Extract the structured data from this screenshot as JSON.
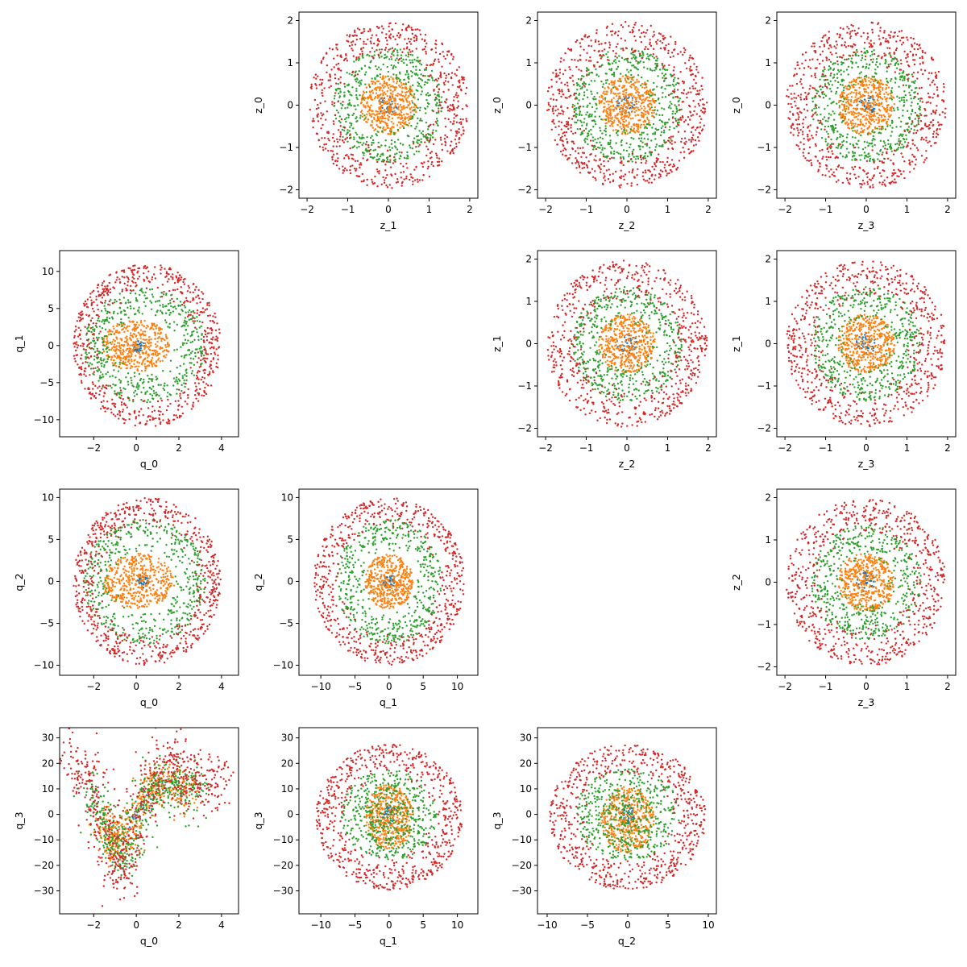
{
  "colors": {
    "series_0": "#1f77b4",
    "series_1": "#ff7f0e",
    "series_2": "#2ca02c",
    "series_3": "#d62728"
  },
  "chart_data": [
    {
      "type": "scatter",
      "row": 0,
      "col": 1,
      "xlabel": "z_1",
      "ylabel": "z_0",
      "xlim": [
        -2.2,
        2.2
      ],
      "ylim": [
        -2.2,
        2.2
      ],
      "xticks": [
        -2,
        -1,
        0,
        1,
        2
      ],
      "yticks": [
        -2,
        -1,
        0,
        1,
        2
      ],
      "grid": false,
      "series": [
        {
          "color": "#1f77b4",
          "shape": "disk",
          "rx": 0.25,
          "ry": 0.25,
          "cx": 0,
          "cy": 0,
          "n": 40
        },
        {
          "color": "#ff7f0e",
          "shape": "disk",
          "rx": 0.7,
          "ry": 0.7,
          "cx": 0,
          "cy": 0,
          "n": 450
        },
        {
          "color": "#2ca02c",
          "shape": "ring",
          "r0": 0.5,
          "r1": 1.35,
          "cx": 0,
          "cy": 0,
          "n": 500
        },
        {
          "color": "#d62728",
          "shape": "ring",
          "r0": 1.0,
          "r1": 1.97,
          "cx": 0,
          "cy": 0,
          "n": 650
        }
      ]
    },
    {
      "type": "scatter",
      "row": 0,
      "col": 2,
      "xlabel": "z_2",
      "ylabel": "z_0",
      "xlim": [
        -2.2,
        2.2
      ],
      "ylim": [
        -2.2,
        2.2
      ],
      "xticks": [
        -2,
        -1,
        0,
        1,
        2
      ],
      "yticks": [
        -2,
        -1,
        0,
        1,
        2
      ],
      "grid": false,
      "series": [
        {
          "color": "#1f77b4",
          "shape": "disk",
          "rx": 0.25,
          "ry": 0.25,
          "cx": 0,
          "cy": 0,
          "n": 40
        },
        {
          "color": "#ff7f0e",
          "shape": "disk",
          "rx": 0.7,
          "ry": 0.7,
          "cx": 0,
          "cy": 0,
          "n": 450
        },
        {
          "color": "#2ca02c",
          "shape": "ring",
          "r0": 0.5,
          "r1": 1.35,
          "cx": 0,
          "cy": 0,
          "n": 500
        },
        {
          "color": "#d62728",
          "shape": "ring",
          "r0": 1.0,
          "r1": 1.97,
          "cx": 0,
          "cy": 0,
          "n": 650
        }
      ]
    },
    {
      "type": "scatter",
      "row": 0,
      "col": 3,
      "xlabel": "z_3",
      "ylabel": "z_0",
      "xlim": [
        -2.2,
        2.2
      ],
      "ylim": [
        -2.2,
        2.2
      ],
      "xticks": [
        -2,
        -1,
        0,
        1,
        2
      ],
      "yticks": [
        -2,
        -1,
        0,
        1,
        2
      ],
      "grid": false,
      "series": [
        {
          "color": "#1f77b4",
          "shape": "disk",
          "rx": 0.25,
          "ry": 0.25,
          "cx": 0,
          "cy": 0,
          "n": 40
        },
        {
          "color": "#ff7f0e",
          "shape": "disk",
          "rx": 0.7,
          "ry": 0.7,
          "cx": 0,
          "cy": 0,
          "n": 450
        },
        {
          "color": "#2ca02c",
          "shape": "ring",
          "r0": 0.5,
          "r1": 1.35,
          "cx": 0,
          "cy": 0,
          "n": 500
        },
        {
          "color": "#d62728",
          "shape": "ring",
          "r0": 1.0,
          "r1": 1.97,
          "cx": 0,
          "cy": 0,
          "n": 650
        }
      ]
    },
    {
      "type": "scatter",
      "row": 1,
      "col": 0,
      "xlabel": "q_0",
      "ylabel": "q_1",
      "xlim": [
        -3.6,
        4.8
      ],
      "ylim": [
        -12.3,
        12.8
      ],
      "xticks": [
        -2,
        0,
        2,
        4
      ],
      "yticks": [
        -10,
        -5,
        0,
        5,
        10
      ],
      "grid": false,
      "series": [
        {
          "color": "#1f77b4",
          "shape": "disk",
          "rx": 0.3,
          "ry": 1.0,
          "cx": 0.1,
          "cy": 0,
          "n": 40
        },
        {
          "color": "#ff7f0e",
          "shape": "disk",
          "rx": 1.6,
          "ry": 3.5,
          "cx": 0,
          "cy": 0,
          "n": 450
        },
        {
          "color": "#2ca02c",
          "shape": "ring",
          "r0": 0.5,
          "r1": 1.1,
          "sx": 2.6,
          "sy": 7,
          "cx": 0.4,
          "cy": 0,
          "n": 500
        },
        {
          "color": "#d62728",
          "shape": "ring",
          "r0": 0.65,
          "r1": 1.05,
          "sx": 3.3,
          "sy": 10.5,
          "cx": 0.5,
          "cy": 0,
          "n": 650
        }
      ]
    },
    {
      "type": "scatter",
      "row": 1,
      "col": 2,
      "xlabel": "z_2",
      "ylabel": "z_1",
      "xlim": [
        -2.2,
        2.2
      ],
      "ylim": [
        -2.2,
        2.2
      ],
      "xticks": [
        -2,
        -1,
        0,
        1,
        2
      ],
      "yticks": [
        -2,
        -1,
        0,
        1,
        2
      ],
      "grid": false,
      "series": [
        {
          "color": "#1f77b4",
          "shape": "disk",
          "rx": 0.25,
          "ry": 0.25,
          "cx": 0,
          "cy": 0,
          "n": 40
        },
        {
          "color": "#ff7f0e",
          "shape": "disk",
          "rx": 0.7,
          "ry": 0.7,
          "cx": 0,
          "cy": 0,
          "n": 450
        },
        {
          "color": "#2ca02c",
          "shape": "ring",
          "r0": 0.5,
          "r1": 1.35,
          "cx": 0,
          "cy": 0,
          "n": 500
        },
        {
          "color": "#d62728",
          "shape": "ring",
          "r0": 1.0,
          "r1": 1.97,
          "cx": 0,
          "cy": 0,
          "n": 650
        }
      ]
    },
    {
      "type": "scatter",
      "row": 1,
      "col": 3,
      "xlabel": "z_3",
      "ylabel": "z_1",
      "xlim": [
        -2.2,
        2.2
      ],
      "ylim": [
        -2.2,
        2.2
      ],
      "xticks": [
        -2,
        -1,
        0,
        1,
        2
      ],
      "yticks": [
        -2,
        -1,
        0,
        1,
        2
      ],
      "grid": false,
      "series": [
        {
          "color": "#1f77b4",
          "shape": "disk",
          "rx": 0.25,
          "ry": 0.25,
          "cx": 0,
          "cy": 0,
          "n": 40
        },
        {
          "color": "#ff7f0e",
          "shape": "disk",
          "rx": 0.7,
          "ry": 0.7,
          "cx": 0,
          "cy": 0,
          "n": 450
        },
        {
          "color": "#2ca02c",
          "shape": "ring",
          "r0": 0.5,
          "r1": 1.35,
          "cx": 0,
          "cy": 0,
          "n": 500
        },
        {
          "color": "#d62728",
          "shape": "ring",
          "r0": 1.0,
          "r1": 1.97,
          "cx": 0,
          "cy": 0,
          "n": 650
        }
      ]
    },
    {
      "type": "scatter",
      "row": 2,
      "col": 0,
      "xlabel": "q_0",
      "ylabel": "q_2",
      "xlim": [
        -3.6,
        4.8
      ],
      "ylim": [
        -11.2,
        11.0
      ],
      "xticks": [
        -2,
        0,
        2,
        4
      ],
      "yticks": [
        -10,
        -5,
        0,
        5,
        10
      ],
      "grid": false,
      "series": [
        {
          "color": "#1f77b4",
          "shape": "disk",
          "rx": 0.3,
          "ry": 0.8,
          "cx": 0.3,
          "cy": 0,
          "n": 40
        },
        {
          "color": "#ff7f0e",
          "shape": "disk",
          "rx": 1.7,
          "ry": 3.3,
          "cx": 0.1,
          "cy": 0,
          "n": 450
        },
        {
          "color": "#2ca02c",
          "shape": "ring",
          "r0": 0.5,
          "r1": 1.1,
          "sx": 2.6,
          "sy": 6.8,
          "cx": 0.4,
          "cy": 0,
          "n": 500
        },
        {
          "color": "#d62728",
          "shape": "ring",
          "r0": 0.65,
          "r1": 1.05,
          "sx": 3.3,
          "sy": 9.5,
          "cx": 0.5,
          "cy": 0,
          "n": 650
        }
      ]
    },
    {
      "type": "scatter",
      "row": 2,
      "col": 1,
      "xlabel": "q_1",
      "ylabel": "q_2",
      "xlim": [
        -13.2,
        13.0
      ],
      "ylim": [
        -11.2,
        11.0
      ],
      "xticks": [
        -10,
        -5,
        0,
        5,
        10
      ],
      "yticks": [
        -10,
        -5,
        0,
        5,
        10
      ],
      "grid": false,
      "series": [
        {
          "color": "#1f77b4",
          "shape": "disk",
          "rx": 1.0,
          "ry": 0.8,
          "cx": 0,
          "cy": 0,
          "n": 40
        },
        {
          "color": "#ff7f0e",
          "shape": "disk",
          "rx": 3.5,
          "ry": 3.3,
          "cx": 0,
          "cy": 0,
          "n": 450
        },
        {
          "color": "#2ca02c",
          "shape": "ring",
          "r0": 0.5,
          "r1": 1.1,
          "sx": 7,
          "sy": 6.8,
          "cx": 0,
          "cy": 0,
          "n": 500
        },
        {
          "color": "#d62728",
          "shape": "ring",
          "r0": 0.65,
          "r1": 1.05,
          "sx": 10.5,
          "sy": 9.5,
          "cx": 0,
          "cy": 0,
          "n": 650
        }
      ]
    },
    {
      "type": "scatter",
      "row": 2,
      "col": 3,
      "xlabel": "z_3",
      "ylabel": "z_2",
      "xlim": [
        -2.2,
        2.2
      ],
      "ylim": [
        -2.2,
        2.2
      ],
      "xticks": [
        -2,
        -1,
        0,
        1,
        2
      ],
      "yticks": [
        -2,
        -1,
        0,
        1,
        2
      ],
      "grid": false,
      "series": [
        {
          "color": "#1f77b4",
          "shape": "disk",
          "rx": 0.25,
          "ry": 0.25,
          "cx": 0,
          "cy": 0,
          "n": 40
        },
        {
          "color": "#ff7f0e",
          "shape": "disk",
          "rx": 0.7,
          "ry": 0.7,
          "cx": 0,
          "cy": 0,
          "n": 450
        },
        {
          "color": "#2ca02c",
          "shape": "ring",
          "r0": 0.5,
          "r1": 1.35,
          "cx": 0,
          "cy": 0,
          "n": 500
        },
        {
          "color": "#d62728",
          "shape": "ring",
          "r0": 1.0,
          "r1": 1.97,
          "cx": 0,
          "cy": 0,
          "n": 650
        }
      ]
    },
    {
      "type": "scatter",
      "row": 3,
      "col": 0,
      "xlabel": "q_0",
      "ylabel": "q_3",
      "xlim": [
        -3.6,
        4.8
      ],
      "ylim": [
        -39,
        34
      ],
      "xticks": [
        -2,
        0,
        2,
        4
      ],
      "yticks": [
        -30,
        -20,
        -10,
        0,
        10,
        20,
        30
      ],
      "grid": false,
      "series": [
        {
          "color": "#1f77b4",
          "shape": "curve",
          "curve": [
            [
              -1.0,
              -14
            ],
            [
              -0.5,
              -9
            ],
            [
              0,
              -1
            ],
            [
              0.5,
              6
            ],
            [
              1.0,
              11
            ],
            [
              1.5,
              10
            ]
          ],
          "sx": 0.1,
          "sy": 2,
          "n": 40
        },
        {
          "color": "#ff7f0e",
          "shape": "curve",
          "curve": [
            [
              -1.6,
              -3
            ],
            [
              -1.3,
              -8
            ],
            [
              -1.0,
              -12
            ],
            [
              -0.6,
              -10
            ],
            [
              -0.2,
              -4
            ],
            [
              0.2,
              4
            ],
            [
              0.6,
              9
            ],
            [
              1.0,
              11
            ],
            [
              1.5,
              12
            ],
            [
              2.0,
              10
            ],
            [
              2.5,
              8
            ]
          ],
          "sx": 0.3,
          "sy": 4,
          "n": 450
        },
        {
          "color": "#2ca02c",
          "shape": "curve",
          "curve": [
            [
              -2.2,
              12
            ],
            [
              -1.8,
              4
            ],
            [
              -1.4,
              -6
            ],
            [
              -1.0,
              -14
            ],
            [
              -0.6,
              -16
            ],
            [
              -0.2,
              -8
            ],
            [
              0.3,
              4
            ],
            [
              0.8,
              11
            ],
            [
              1.3,
              14
            ],
            [
              1.8,
              11
            ],
            [
              2.4,
              9
            ],
            [
              3.0,
              8
            ]
          ],
          "sx": 0.35,
          "sy": 5,
          "n": 500
        },
        {
          "color": "#d62728",
          "shape": "curve",
          "curve": [
            [
              -3.1,
              22
            ],
            [
              -2.6,
              20
            ],
            [
              -2.2,
              14
            ],
            [
              -1.8,
              4
            ],
            [
              -1.4,
              -8
            ],
            [
              -1.0,
              -20
            ],
            [
              -0.7,
              -25
            ],
            [
              -0.3,
              -14
            ],
            [
              0.1,
              0
            ],
            [
              0.6,
              12
            ],
            [
              1.0,
              18
            ],
            [
              1.5,
              22
            ],
            [
              2.0,
              18
            ],
            [
              2.5,
              14
            ],
            [
              3.0,
              12
            ],
            [
              3.5,
              13
            ],
            [
              4.0,
              14
            ]
          ],
          "sx": 0.4,
          "sy": 6,
          "n": 650
        }
      ]
    },
    {
      "type": "scatter",
      "row": 3,
      "col": 1,
      "xlabel": "q_1",
      "ylabel": "q_3",
      "xlim": [
        -13.2,
        13.0
      ],
      "ylim": [
        -39,
        34
      ],
      "xticks": [
        -10,
        -5,
        0,
        5,
        10
      ],
      "yticks": [
        -30,
        -20,
        -10,
        0,
        10,
        20,
        30
      ],
      "grid": false,
      "series": [
        {
          "color": "#1f77b4",
          "shape": "disk",
          "rx": 1.0,
          "ry": 4,
          "cx": 0,
          "cy": 0,
          "n": 40
        },
        {
          "color": "#ff7f0e",
          "shape": "disk",
          "rx": 3.5,
          "ry": 13,
          "cx": 0,
          "cy": -1,
          "n": 450
        },
        {
          "color": "#2ca02c",
          "shape": "disk",
          "rx": 7,
          "ry": 18,
          "cx": 0,
          "cy": 0,
          "n": 500
        },
        {
          "color": "#d62728",
          "shape": "ring",
          "r0": 0.55,
          "r1": 1.02,
          "sx": 10.5,
          "sy": 28,
          "cx": 0,
          "cy": -1,
          "n": 650
        }
      ]
    },
    {
      "type": "scatter",
      "row": 3,
      "col": 2,
      "xlabel": "q_2",
      "ylabel": "q_3",
      "xlim": [
        -11.2,
        11.0
      ],
      "ylim": [
        -39,
        34
      ],
      "xticks": [
        -10,
        -5,
        0,
        5,
        10
      ],
      "yticks": [
        -30,
        -20,
        -10,
        0,
        10,
        20,
        30
      ],
      "grid": false,
      "series": [
        {
          "color": "#1f77b4",
          "shape": "disk",
          "rx": 0.8,
          "ry": 4,
          "cx": 0,
          "cy": 0,
          "n": 40
        },
        {
          "color": "#ff7f0e",
          "shape": "disk",
          "rx": 3.3,
          "ry": 13,
          "cx": 0,
          "cy": -2,
          "n": 450
        },
        {
          "color": "#2ca02c",
          "shape": "disk",
          "rx": 6.5,
          "ry": 18,
          "cx": 0,
          "cy": 0,
          "n": 500
        },
        {
          "color": "#d62728",
          "shape": "ring",
          "r0": 0.55,
          "r1": 1.02,
          "sx": 9.5,
          "sy": 28,
          "cx": 0,
          "cy": -1,
          "n": 650
        }
      ]
    }
  ]
}
